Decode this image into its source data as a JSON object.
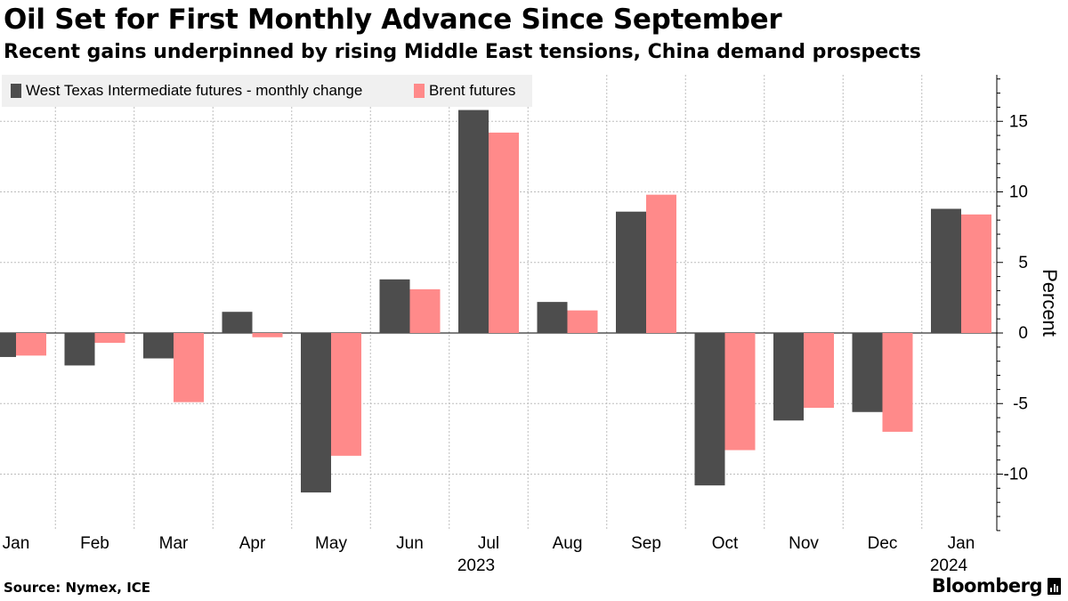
{
  "header": {
    "title": "Oil Set for First Monthly Advance Since September",
    "subtitle": "Recent gains underpinned by rising Middle East tensions, China demand prospects"
  },
  "footer": {
    "source": "Source: Nymex, ICE",
    "brand": "Bloomberg"
  },
  "colors": {
    "wti": "#4d4d4d",
    "brent": "#ff8a8a",
    "grid": "#bdbdbd",
    "legend_bg": "#f0f0f0"
  },
  "chart_data": {
    "type": "bar",
    "title": "Oil Set for First Monthly Advance Since September",
    "subtitle": "Recent gains underpinned by rising Middle East tensions, China demand prospects",
    "categories": [
      "Jan",
      "Feb",
      "Mar",
      "Apr",
      "May",
      "Jun",
      "Jul",
      "Aug",
      "Sep",
      "Oct",
      "Nov",
      "Dec",
      "Jan"
    ],
    "year_labels": [
      {
        "label": "2023",
        "category_index": 6
      },
      {
        "label": "2024",
        "category_index": 12
      }
    ],
    "series": [
      {
        "name": "West Texas Intermediate futures - monthly change",
        "values": [
          -1.7,
          -2.3,
          -1.8,
          1.5,
          -11.3,
          3.8,
          15.8,
          2.2,
          8.6,
          -10.8,
          -6.2,
          -5.6,
          8.8
        ]
      },
      {
        "name": "Brent futures",
        "values": [
          -1.6,
          -0.7,
          -4.9,
          -0.3,
          -8.7,
          3.1,
          14.2,
          1.6,
          9.8,
          -8.3,
          -5.3,
          -7.0,
          8.4
        ]
      }
    ],
    "ylabel": "Percent",
    "xlabel": "",
    "ylim": [
      -14,
      18.5
    ],
    "yticks": [
      -10,
      -5,
      0,
      5,
      10,
      15
    ],
    "ytick_labels": [
      "-10",
      "-5",
      "0",
      "5",
      "10",
      "15"
    ],
    "grid": true,
    "legend_position": "top-left",
    "axis_side": "right"
  }
}
